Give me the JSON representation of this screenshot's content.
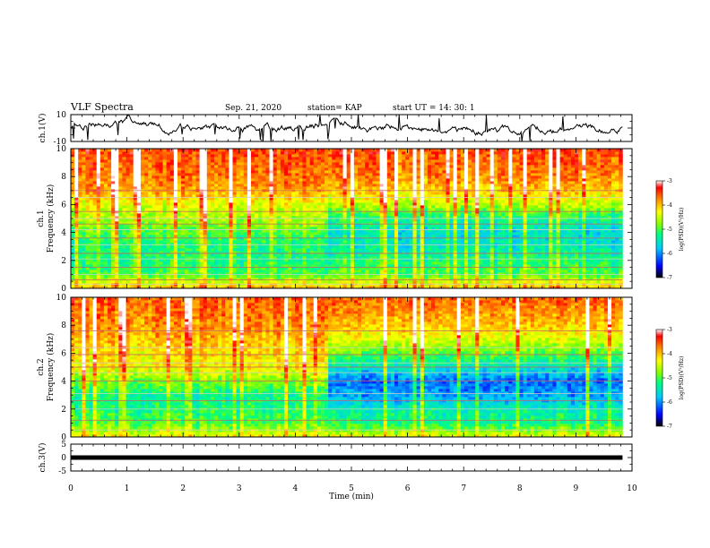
{
  "header": {
    "title": "VLF Spectra",
    "date": "Sep. 21, 2020",
    "station": "station= KAP",
    "start": "start  UT =   14: 30: 1"
  },
  "chart_data": [
    {
      "type": "line",
      "ylabel": "ch.1(V)",
      "ylim": [
        -10,
        10
      ],
      "ytick_labels": [
        "10",
        "-10"
      ],
      "xlim": [
        0,
        10
      ],
      "data_end_min": 9.83,
      "description_series": "waveform",
      "style": {
        "line_color": "#000000"
      }
    },
    {
      "type": "heatmap",
      "ylabel": "ch.1\nFrequency  (kHz)",
      "ylabel_lines": [
        "ch.1",
        "Frequency  (kHz)"
      ],
      "ylim": [
        0,
        10
      ],
      "ytick_labels": [
        "0",
        "2",
        "4",
        "6",
        "8",
        "10"
      ],
      "xlim": [
        0,
        10
      ],
      "data_end_min": 9.83,
      "colorbar": {
        "label": "log(PSD)(V²/Hz)",
        "range": [
          -7,
          -3
        ],
        "tick_labels": [
          "-3",
          "-4",
          "-5",
          "-6",
          "-7"
        ]
      },
      "level_profile_before_4.6min": {
        "freq_khz": [
          0,
          1,
          2,
          3,
          4,
          5,
          6,
          7,
          8,
          10
        ],
        "log_psd": [
          -4.0,
          -5.0,
          -5.2,
          -5.2,
          -5.0,
          -4.6,
          -4.4,
          -3.9,
          -3.7,
          -3.5
        ]
      },
      "level_profile_after_4.6min": {
        "freq_khz": [
          0,
          1,
          2,
          3,
          4,
          5,
          6,
          7,
          8,
          10
        ],
        "log_psd": [
          -4.0,
          -5.0,
          -5.2,
          -5.5,
          -5.6,
          -5.3,
          -4.6,
          -4.1,
          -3.8,
          -3.5
        ]
      },
      "horizontal_lines_khz": [
        0.3,
        0.6,
        1.0,
        1.5,
        2.1,
        2.5,
        3.1,
        3.6,
        4.2,
        4.6,
        5.0,
        5.5,
        6.5,
        7.0
      ]
    },
    {
      "type": "heatmap",
      "ylabel": "ch.2\nFrequency  (kHz)",
      "ylabel_lines": [
        "ch.2",
        "Frequency  (kHz)"
      ],
      "ylim": [
        0,
        10
      ],
      "ytick_labels": [
        "0",
        "2",
        "4",
        "6",
        "8",
        "10"
      ],
      "xlim": [
        0,
        10
      ],
      "data_end_min": 9.83,
      "colorbar": {
        "label": "log(PSD)(V²/Hz)",
        "range": [
          -7,
          -3
        ],
        "tick_labels": [
          "-3",
          "-4",
          "-5",
          "-6",
          "-7"
        ]
      },
      "level_profile_before_4.6min": {
        "freq_khz": [
          0,
          1,
          2,
          3,
          4,
          5,
          6,
          7,
          8,
          10
        ],
        "log_psd": [
          -4.3,
          -5.0,
          -5.2,
          -5.3,
          -4.8,
          -4.3,
          -4.2,
          -4.0,
          -3.8,
          -3.6
        ]
      },
      "level_profile_after_4.6min": {
        "freq_khz": [
          0,
          1,
          2,
          3,
          4,
          5,
          6,
          7,
          8,
          10
        ],
        "log_psd": [
          -4.3,
          -5.2,
          -5.4,
          -5.9,
          -6.1,
          -5.5,
          -4.9,
          -4.4,
          -4.0,
          -3.6
        ]
      },
      "horizontal_lines_khz": [
        0.5,
        1.2,
        2.0,
        2.6,
        3.1,
        4.0,
        4.6,
        5.0,
        5.3,
        5.9,
        6.4,
        7.6
      ]
    },
    {
      "type": "line",
      "ylabel": "ch.3(V)",
      "ylim": [
        -5,
        5
      ],
      "ytick_labels": [
        "5",
        "0",
        "-5"
      ],
      "xlim": [
        0,
        10
      ],
      "data_end_min": 9.83,
      "level_v": 0,
      "style": {
        "line_color": "#000000"
      }
    }
  ],
  "xaxis": {
    "label": "Time  (min)",
    "tick_labels": [
      "0",
      "1",
      "2",
      "3",
      "4",
      "5",
      "6",
      "7",
      "8",
      "9",
      "10"
    ]
  }
}
